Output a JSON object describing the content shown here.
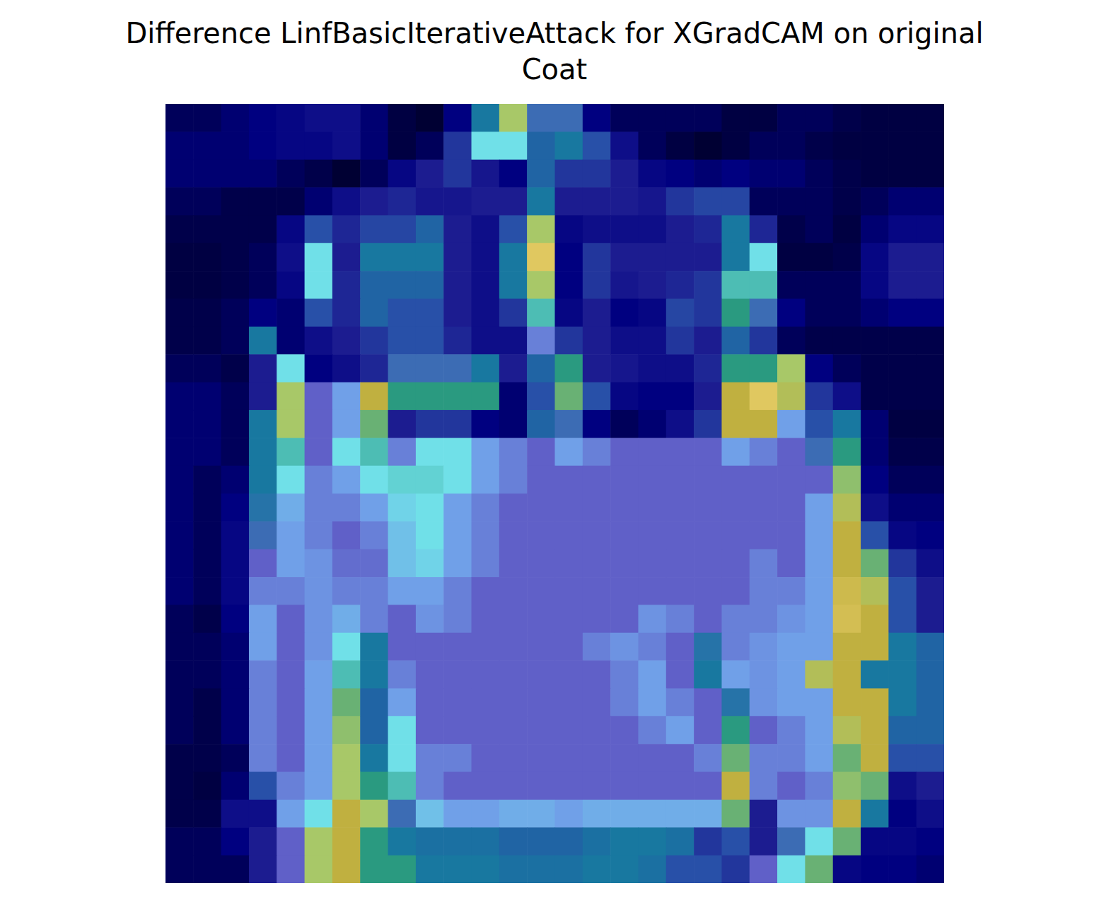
{
  "chart_data": {
    "type": "heatmap",
    "title": "Difference LinfBasicIterativeAttack for XGradCAM on original\nCoat",
    "tick_labels": false,
    "cells": [
      [
        0.05,
        0.05,
        0.08,
        0.1,
        0.12,
        0.15,
        0.15,
        0.08,
        0.02,
        0.0,
        0.1,
        0.4,
        0.9,
        0.45,
        0.45,
        0.1,
        0.05,
        0.05,
        0.05,
        0.05,
        0.02,
        0.02,
        0.05,
        0.05,
        0.03,
        0.02,
        0.02,
        0.02
      ],
      [
        0.08,
        0.08,
        0.08,
        0.1,
        0.12,
        0.12,
        0.15,
        0.08,
        0.02,
        0.05,
        0.25,
        0.7,
        0.7,
        0.35,
        0.4,
        0.3,
        0.15,
        0.05,
        0.02,
        0.0,
        0.02,
        0.05,
        0.05,
        0.03,
        0.02,
        0.02,
        0.02,
        0.02
      ],
      [
        0.08,
        0.08,
        0.08,
        0.08,
        0.05,
        0.03,
        0.0,
        0.05,
        0.12,
        0.2,
        0.25,
        0.18,
        0.1,
        0.35,
        0.25,
        0.25,
        0.2,
        0.12,
        0.1,
        0.08,
        0.1,
        0.08,
        0.08,
        0.05,
        0.03,
        0.02,
        0.02,
        0.02
      ],
      [
        0.05,
        0.05,
        0.03,
        0.03,
        0.03,
        0.08,
        0.15,
        0.2,
        0.22,
        0.18,
        0.18,
        0.2,
        0.2,
        0.4,
        0.2,
        0.2,
        0.2,
        0.18,
        0.25,
        0.28,
        0.28,
        0.05,
        0.05,
        0.05,
        0.03,
        0.05,
        0.08,
        0.08
      ],
      [
        0.03,
        0.03,
        0.03,
        0.03,
        0.12,
        0.3,
        0.22,
        0.28,
        0.28,
        0.35,
        0.2,
        0.15,
        0.3,
        0.9,
        0.12,
        0.15,
        0.15,
        0.15,
        0.2,
        0.22,
        0.4,
        0.22,
        0.03,
        0.05,
        0.02,
        0.08,
        0.12,
        0.12
      ],
      [
        0.02,
        0.02,
        0.03,
        0.05,
        0.15,
        0.7,
        0.2,
        0.4,
        0.4,
        0.4,
        0.2,
        0.15,
        0.4,
        1.0,
        0.1,
        0.25,
        0.2,
        0.2,
        0.2,
        0.2,
        0.4,
        0.7,
        0.02,
        0.02,
        0.03,
        0.12,
        0.2,
        0.2
      ],
      [
        0.02,
        0.02,
        0.03,
        0.05,
        0.12,
        0.7,
        0.22,
        0.35,
        0.35,
        0.35,
        0.2,
        0.15,
        0.4,
        0.9,
        0.1,
        0.25,
        0.18,
        0.2,
        0.22,
        0.25,
        0.75,
        0.75,
        0.05,
        0.05,
        0.05,
        0.12,
        0.2,
        0.2
      ],
      [
        0.03,
        0.03,
        0.05,
        0.1,
        0.08,
        0.3,
        0.22,
        0.35,
        0.3,
        0.3,
        0.2,
        0.15,
        0.25,
        0.75,
        0.12,
        0.2,
        0.1,
        0.12,
        0.28,
        0.25,
        0.8,
        0.45,
        0.1,
        0.05,
        0.05,
        0.08,
        0.1,
        0.1
      ],
      [
        0.03,
        0.03,
        0.05,
        0.4,
        0.08,
        0.15,
        0.2,
        0.25,
        0.3,
        0.3,
        0.22,
        0.15,
        0.15,
        0.55,
        0.25,
        0.2,
        0.15,
        0.15,
        0.25,
        0.2,
        0.35,
        0.25,
        0.05,
        0.03,
        0.03,
        0.03,
        0.03,
        0.03
      ],
      [
        0.05,
        0.05,
        0.03,
        0.2,
        0.7,
        0.1,
        0.15,
        0.22,
        0.45,
        0.45,
        0.45,
        0.4,
        0.2,
        0.35,
        0.8,
        0.2,
        0.18,
        0.15,
        0.15,
        0.22,
        0.8,
        0.8,
        0.9,
        0.1,
        0.05,
        0.03,
        0.03,
        0.03
      ],
      [
        0.08,
        0.08,
        0.05,
        0.2,
        0.9,
        0.5,
        0.6,
        0.95,
        0.8,
        0.8,
        0.8,
        0.8,
        0.08,
        0.3,
        0.85,
        0.3,
        0.12,
        0.1,
        0.1,
        0.2,
        0.95,
        1.0,
        0.92,
        0.25,
        0.15,
        0.03,
        0.03,
        0.03
      ],
      [
        0.08,
        0.08,
        0.05,
        0.4,
        0.9,
        0.5,
        0.6,
        0.85,
        0.2,
        0.25,
        0.25,
        0.1,
        0.08,
        0.35,
        0.45,
        0.1,
        0.05,
        0.08,
        0.15,
        0.25,
        0.95,
        0.95,
        0.6,
        0.3,
        0.4,
        0.08,
        0.02,
        0.02
      ],
      [
        0.08,
        0.08,
        0.05,
        0.4,
        0.75,
        0.5,
        0.7,
        0.75,
        0.55,
        0.7,
        0.7,
        0.6,
        0.55,
        0.5,
        0.6,
        0.55,
        0.5,
        0.5,
        0.5,
        0.5,
        0.6,
        0.55,
        0.5,
        0.45,
        0.8,
        0.08,
        0.03,
        0.03
      ],
      [
        0.08,
        0.05,
        0.08,
        0.4,
        0.7,
        0.55,
        0.6,
        0.7,
        0.72,
        0.72,
        0.7,
        0.6,
        0.55,
        0.5,
        0.5,
        0.5,
        0.5,
        0.5,
        0.5,
        0.5,
        0.5,
        0.5,
        0.5,
        0.5,
        0.88,
        0.1,
        0.05,
        0.05
      ],
      [
        0.08,
        0.05,
        0.1,
        0.42,
        0.62,
        0.55,
        0.55,
        0.6,
        0.68,
        0.7,
        0.6,
        0.55,
        0.5,
        0.5,
        0.5,
        0.5,
        0.5,
        0.5,
        0.5,
        0.5,
        0.5,
        0.5,
        0.5,
        0.6,
        0.92,
        0.15,
        0.08,
        0.08
      ],
      [
        0.08,
        0.05,
        0.12,
        0.45,
        0.6,
        0.55,
        0.5,
        0.55,
        0.65,
        0.7,
        0.6,
        0.55,
        0.5,
        0.5,
        0.5,
        0.5,
        0.5,
        0.5,
        0.5,
        0.5,
        0.5,
        0.5,
        0.5,
        0.6,
        0.95,
        0.3,
        0.12,
        0.1
      ],
      [
        0.08,
        0.05,
        0.12,
        0.5,
        0.6,
        0.58,
        0.52,
        0.52,
        0.65,
        0.68,
        0.6,
        0.55,
        0.5,
        0.5,
        0.5,
        0.5,
        0.5,
        0.5,
        0.5,
        0.5,
        0.5,
        0.55,
        0.5,
        0.6,
        0.95,
        0.85,
        0.25,
        0.15
      ],
      [
        0.08,
        0.05,
        0.12,
        0.55,
        0.55,
        0.58,
        0.55,
        0.55,
        0.6,
        0.6,
        0.55,
        0.5,
        0.5,
        0.5,
        0.5,
        0.5,
        0.5,
        0.5,
        0.5,
        0.5,
        0.5,
        0.55,
        0.55,
        0.6,
        0.97,
        0.92,
        0.3,
        0.2
      ],
      [
        0.05,
        0.03,
        0.1,
        0.6,
        0.5,
        0.58,
        0.62,
        0.55,
        0.5,
        0.58,
        0.55,
        0.5,
        0.5,
        0.5,
        0.5,
        0.5,
        0.5,
        0.58,
        0.55,
        0.5,
        0.55,
        0.55,
        0.58,
        0.6,
        0.98,
        0.95,
        0.3,
        0.2
      ],
      [
        0.05,
        0.05,
        0.08,
        0.6,
        0.5,
        0.58,
        0.7,
        0.4,
        0.5,
        0.5,
        0.5,
        0.5,
        0.5,
        0.5,
        0.5,
        0.55,
        0.58,
        0.55,
        0.5,
        0.42,
        0.55,
        0.58,
        0.6,
        0.6,
        0.95,
        0.95,
        0.4,
        0.35
      ],
      [
        0.05,
        0.05,
        0.08,
        0.55,
        0.5,
        0.6,
        0.75,
        0.4,
        0.55,
        0.5,
        0.5,
        0.5,
        0.5,
        0.5,
        0.5,
        0.5,
        0.55,
        0.6,
        0.5,
        0.4,
        0.6,
        0.58,
        0.6,
        0.92,
        0.95,
        0.4,
        0.4,
        0.35
      ],
      [
        0.05,
        0.03,
        0.08,
        0.55,
        0.5,
        0.6,
        0.85,
        0.35,
        0.6,
        0.5,
        0.5,
        0.5,
        0.5,
        0.5,
        0.5,
        0.5,
        0.55,
        0.6,
        0.55,
        0.5,
        0.42,
        0.58,
        0.6,
        0.6,
        0.95,
        0.95,
        0.4,
        0.35
      ],
      [
        0.05,
        0.03,
        0.08,
        0.55,
        0.5,
        0.6,
        0.88,
        0.35,
        0.7,
        0.5,
        0.5,
        0.5,
        0.5,
        0.5,
        0.5,
        0.5,
        0.5,
        0.55,
        0.6,
        0.5,
        0.8,
        0.5,
        0.55,
        0.6,
        0.92,
        0.95,
        0.35,
        0.35
      ],
      [
        0.03,
        0.03,
        0.05,
        0.55,
        0.5,
        0.6,
        0.9,
        0.4,
        0.7,
        0.55,
        0.55,
        0.5,
        0.5,
        0.5,
        0.5,
        0.5,
        0.5,
        0.5,
        0.5,
        0.55,
        0.85,
        0.55,
        0.55,
        0.6,
        0.85,
        0.95,
        0.3,
        0.3
      ],
      [
        0.03,
        0.02,
        0.08,
        0.3,
        0.55,
        0.6,
        0.9,
        0.8,
        0.75,
        0.55,
        0.5,
        0.5,
        0.5,
        0.5,
        0.5,
        0.5,
        0.5,
        0.5,
        0.5,
        0.5,
        0.95,
        0.55,
        0.5,
        0.55,
        0.88,
        0.85,
        0.15,
        0.2
      ],
      [
        0.03,
        0.03,
        0.15,
        0.15,
        0.6,
        0.7,
        0.95,
        0.9,
        0.45,
        0.65,
        0.6,
        0.6,
        0.62,
        0.62,
        0.6,
        0.62,
        0.62,
        0.62,
        0.62,
        0.62,
        0.85,
        0.2,
        0.58,
        0.58,
        0.95,
        0.4,
        0.1,
        0.15
      ],
      [
        0.05,
        0.05,
        0.1,
        0.2,
        0.5,
        0.9,
        0.95,
        0.8,
        0.4,
        0.38,
        0.38,
        0.38,
        0.35,
        0.35,
        0.35,
        0.38,
        0.4,
        0.4,
        0.38,
        0.25,
        0.3,
        0.2,
        0.45,
        0.7,
        0.85,
        0.12,
        0.12,
        0.1
      ],
      [
        0.05,
        0.05,
        0.05,
        0.2,
        0.5,
        0.9,
        0.95,
        0.8,
        0.8,
        0.4,
        0.4,
        0.4,
        0.38,
        0.38,
        0.38,
        0.4,
        0.4,
        0.38,
        0.3,
        0.3,
        0.25,
        0.5,
        0.7,
        0.85,
        0.12,
        0.1,
        0.1,
        0.08
      ]
    ]
  }
}
